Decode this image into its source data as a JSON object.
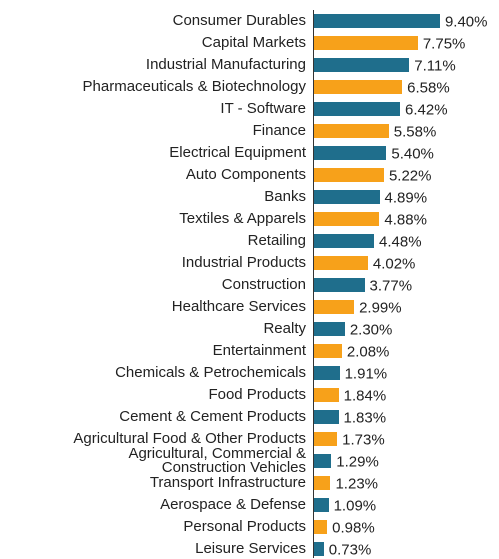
{
  "chart_data": {
    "type": "bar",
    "orientation": "horizontal",
    "categories": [
      "Consumer Durables",
      "Capital Markets",
      "Industrial Manufacturing",
      "Pharmaceuticals & Biotechnology",
      "IT - Software",
      "Finance",
      "Electrical Equipment",
      "Auto Components",
      "Banks",
      "Textiles & Apparels",
      "Retailing",
      "Industrial Products",
      "Construction",
      "Healthcare Services",
      "Realty",
      "Entertainment",
      "Chemicals & Petrochemicals",
      "Food Products",
      "Cement & Cement Products",
      "Agricultural Food & Other Products",
      "Agricultural, Commercial &\nConstruction Vehicles",
      "Transport Infrastructure",
      "Aerospace & Defense",
      "Personal Products",
      "Leisure Services"
    ],
    "values": [
      9.4,
      7.75,
      7.11,
      6.58,
      6.42,
      5.58,
      5.4,
      5.22,
      4.89,
      4.88,
      4.48,
      4.02,
      3.77,
      2.99,
      2.3,
      2.08,
      1.91,
      1.84,
      1.83,
      1.73,
      1.29,
      1.23,
      1.09,
      0.98,
      0.73
    ],
    "value_labels": [
      "9.40%",
      "7.75%",
      "7.11%",
      "6.58%",
      "6.42%",
      "5.58%",
      "5.40%",
      "5.22%",
      "4.89%",
      "4.88%",
      "4.48%",
      "4.02%",
      "3.77%",
      "2.99%",
      "2.30%",
      "2.08%",
      "1.91%",
      "1.84%",
      "1.83%",
      "1.73%",
      "1.29%",
      "1.23%",
      "1.09%",
      "0.98%",
      "0.73%"
    ],
    "colors": [
      "#1f6e8c",
      "#f7a11a",
      "#1f6e8c",
      "#f7a11a",
      "#1f6e8c",
      "#f7a11a",
      "#1f6e8c",
      "#f7a11a",
      "#1f6e8c",
      "#f7a11a",
      "#1f6e8c",
      "#f7a11a",
      "#1f6e8c",
      "#f7a11a",
      "#1f6e8c",
      "#f7a11a",
      "#1f6e8c",
      "#f7a11a",
      "#1f6e8c",
      "#f7a11a",
      "#1f6e8c",
      "#f7a11a",
      "#1f6e8c",
      "#f7a11a",
      "#1f6e8c"
    ]
  }
}
